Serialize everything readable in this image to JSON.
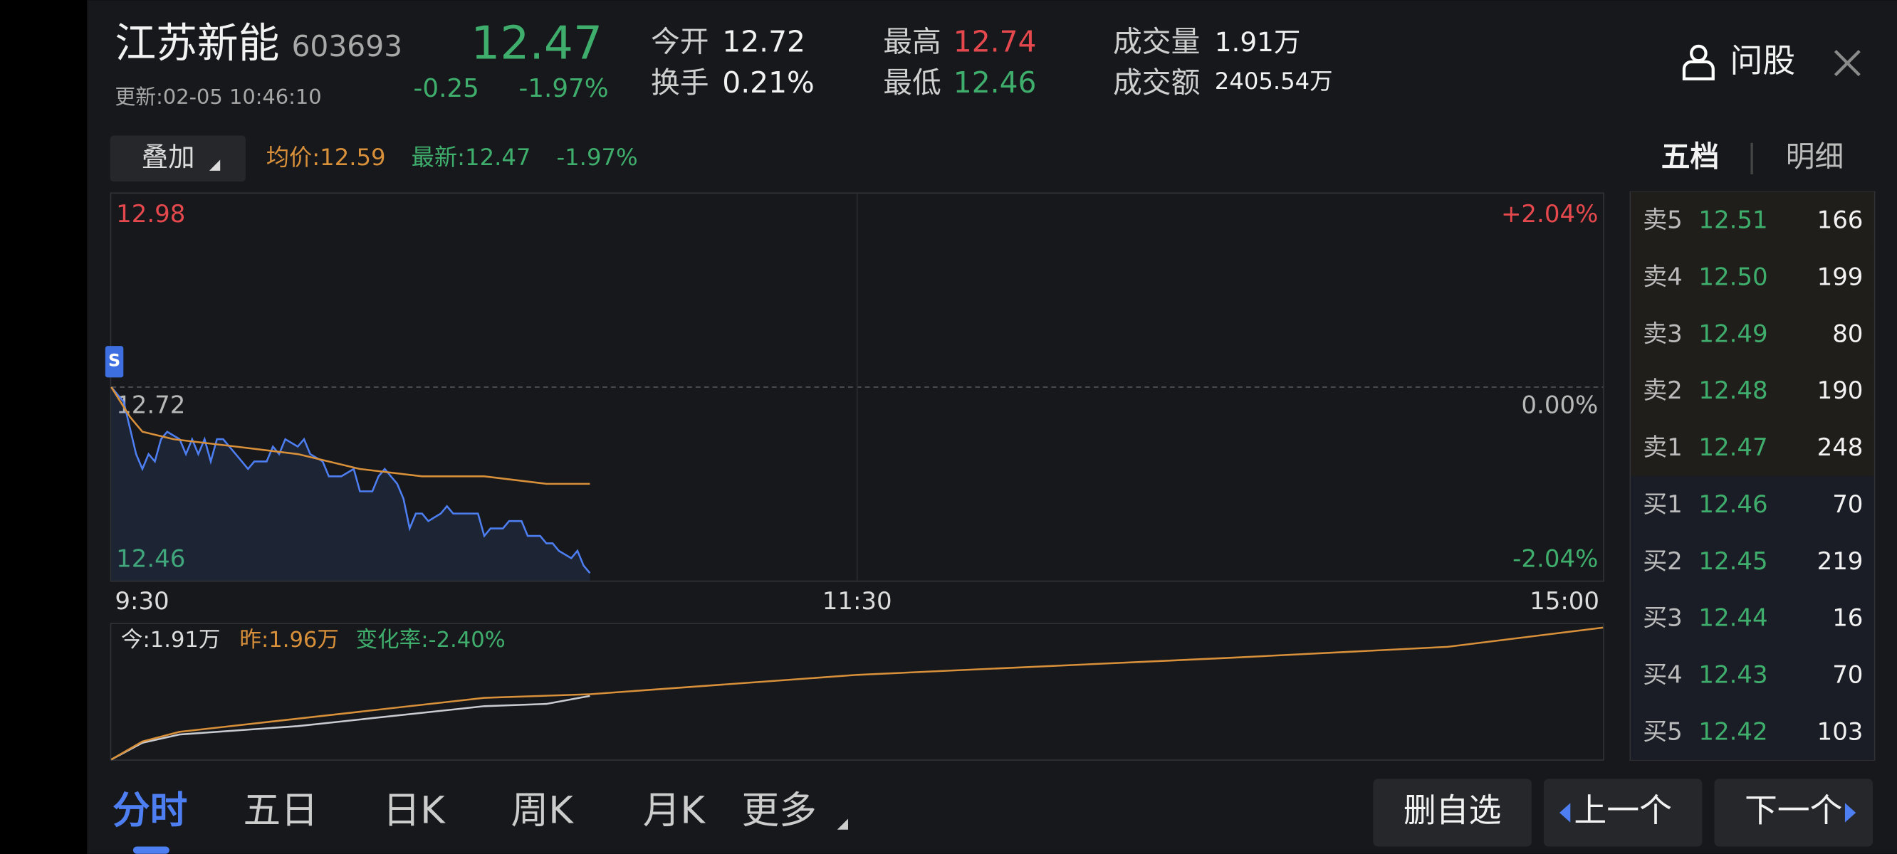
{
  "header": {
    "name": "江苏新能",
    "code": "603693",
    "price": "12.47",
    "change": "-0.25",
    "change_pct": "-1.97%",
    "update": "更新:02-05 10:46:10",
    "stats": [
      {
        "label": "今开",
        "value": "12.72"
      },
      {
        "label": "换手",
        "value": "0.21%"
      },
      {
        "label": "最高",
        "value": "12.74"
      },
      {
        "label": "最低",
        "value": "12.46"
      },
      {
        "label": "成交量",
        "value": "1.91万"
      },
      {
        "label": "成交额",
        "value": "2405.54万"
      }
    ],
    "ask_button": "问股"
  },
  "toolbar": {
    "overlay": "叠加",
    "latest_pct": "-1.97%"
  },
  "side_tabs": [
    "五档",
    "明细"
  ],
  "chart_data": [
    {
      "type": "line",
      "xlim": [
        0,
        240
      ],
      "xticks": [
        {
          "value": 0,
          "label": "9:30"
        },
        {
          "value": 120,
          "label": "11:30"
        },
        {
          "value": 240,
          "label": "15:00"
        }
      ],
      "ylim": [
        12.46,
        12.98
      ],
      "yticks": [
        12.46,
        12.72,
        12.98
      ],
      "y2lim": [
        -2.04,
        2.04
      ],
      "y2ticks": [
        {
          "value": -2.04,
          "label": "-2.04%"
        },
        {
          "value": 0,
          "label": "0.00%"
        },
        {
          "value": 2.04,
          "label": "+2.04%"
        }
      ],
      "start_marker": "S",
      "series": [
        {
          "name": "最新:12.47",
          "color": "#4e7ff2",
          "label_color": "#3fae6d",
          "x": [
            0,
            2,
            4,
            5,
            6,
            7,
            8,
            9,
            11,
            12,
            13,
            14,
            15,
            16,
            17,
            18,
            19,
            21,
            22,
            23,
            25,
            26,
            27,
            28,
            30,
            31,
            32,
            34,
            35,
            37,
            39,
            40,
            42,
            43,
            44,
            46,
            47,
            48,
            49,
            50,
            51,
            53,
            54,
            55,
            59,
            60,
            61,
            63,
            64,
            66,
            67,
            69,
            70,
            71,
            72,
            74,
            75,
            76,
            77
          ],
          "values": [
            12.72,
            12.7,
            12.63,
            12.61,
            12.63,
            12.62,
            12.65,
            12.66,
            12.65,
            12.63,
            12.65,
            12.63,
            12.65,
            12.62,
            12.65,
            12.65,
            12.64,
            12.62,
            12.61,
            12.62,
            12.62,
            12.64,
            12.63,
            12.65,
            12.64,
            12.65,
            12.63,
            12.62,
            12.6,
            12.6,
            12.61,
            12.58,
            12.58,
            12.6,
            12.61,
            12.59,
            12.57,
            12.53,
            12.55,
            12.55,
            12.54,
            12.55,
            12.56,
            12.55,
            12.55,
            12.52,
            12.53,
            12.53,
            12.54,
            12.54,
            12.52,
            12.52,
            12.51,
            12.51,
            12.5,
            12.49,
            12.5,
            12.48,
            12.47
          ]
        },
        {
          "name": "均价:12.59",
          "color": "#d8903a",
          "label_color": "#d8903a",
          "x": [
            0,
            3,
            5,
            10,
            20,
            30,
            40,
            50,
            60,
            70,
            77
          ],
          "values": [
            12.72,
            12.68,
            12.66,
            12.65,
            12.64,
            12.63,
            12.61,
            12.6,
            12.6,
            12.59,
            12.59
          ]
        }
      ]
    },
    {
      "type": "line",
      "xlim": [
        0,
        240
      ],
      "ylim": [
        0,
        4.1
      ],
      "change_label": "变化率:-2.40%",
      "series": [
        {
          "name": "今:1.91万",
          "color": "#c9cbd3",
          "label_color": "#dddddd",
          "x": [
            0,
            5,
            11,
            30,
            60,
            70,
            77
          ],
          "values": [
            0,
            0.5,
            0.75,
            1.0,
            1.6,
            1.67,
            1.91
          ]
        },
        {
          "name": "昨:1.96万",
          "color": "#d8903a",
          "label_color": "#d8903a",
          "x": [
            0,
            5,
            11,
            60,
            77,
            120,
            180,
            215,
            240
          ],
          "values": [
            0,
            0.54,
            0.83,
            1.85,
            1.96,
            2.54,
            3.05,
            3.38,
            3.96
          ]
        }
      ]
    }
  ],
  "order_book": {
    "rows": [
      {
        "label": "卖5",
        "price": "12.51",
        "volume": "166"
      },
      {
        "label": "卖4",
        "price": "12.50",
        "volume": "199"
      },
      {
        "label": "卖3",
        "price": "12.49",
        "volume": "80"
      },
      {
        "label": "卖2",
        "price": "12.48",
        "volume": "190"
      },
      {
        "label": "卖1",
        "price": "12.47",
        "volume": "248"
      },
      {
        "label": "买1",
        "price": "12.46",
        "volume": "70"
      },
      {
        "label": "买2",
        "price": "12.45",
        "volume": "219"
      },
      {
        "label": "买3",
        "price": "12.44",
        "volume": "16"
      },
      {
        "label": "买4",
        "price": "12.43",
        "volume": "70"
      },
      {
        "label": "买5",
        "price": "12.42",
        "volume": "103"
      }
    ]
  },
  "bottom_tabs": [
    "分时",
    "五日",
    "日K",
    "周K",
    "月K",
    "更多"
  ],
  "buttons": [
    "删自选",
    "上一个",
    "下一个"
  ]
}
